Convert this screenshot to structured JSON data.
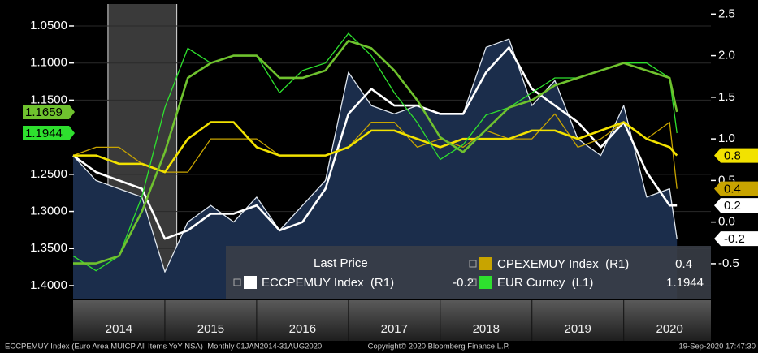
{
  "chart_data": {
    "type": "line",
    "x": [
      2014.0,
      2014.25,
      2014.5,
      2014.75,
      2015.0,
      2015.25,
      2015.5,
      2015.75,
      2016.0,
      2016.25,
      2016.5,
      2016.75,
      2017.0,
      2017.25,
      2017.5,
      2017.75,
      2018.0,
      2018.25,
      2018.5,
      2018.75,
      2019.0,
      2019.25,
      2019.5,
      2019.75,
      2020.0,
      2020.25,
      2020.5,
      2020.58
    ],
    "xlim": [
      2014,
      2020.95
    ],
    "xticks": [
      {
        "value": 2014.5,
        "label": "2014"
      },
      {
        "value": 2015.5,
        "label": "2015"
      },
      {
        "value": 2016.5,
        "label": "2016"
      },
      {
        "value": 2017.5,
        "label": "2017"
      },
      {
        "value": 2018.5,
        "label": "2018"
      },
      {
        "value": 2019.5,
        "label": "2019"
      },
      {
        "value": 2020.5,
        "label": "2020"
      }
    ],
    "ylim": [
      1.0205,
      1.4175
    ],
    "y_inverted": true,
    "yticks": [
      {
        "value": 1.05,
        "label": "1.0500"
      },
      {
        "value": 1.1,
        "label": "1.1000"
      },
      {
        "value": 1.15,
        "label": "1.1500"
      },
      {
        "value": 1.25,
        "label": "1.2500"
      },
      {
        "value": 1.3,
        "label": "1.3000"
      },
      {
        "value": 1.35,
        "label": "1.3500"
      },
      {
        "value": 1.4,
        "label": "1.4000"
      }
    ],
    "y2lim": [
      -0.92,
      2.62
    ],
    "y2ticks": [
      2.5,
      {
        "value": 2,
        "label": "2.0"
      },
      1.5,
      {
        "value": 1,
        "label": "1.0"
      },
      0.5,
      {
        "value": 0,
        "label": "0.0"
      },
      -0.5
    ],
    "grid": true,
    "highlight": [
      2014.38,
      2015.13
    ],
    "legend_title": "Last Price",
    "series": [
      {
        "name": "ECCPEMUY Index  (R1)",
        "axis": "y2",
        "color": "#dfe6ee",
        "width": 1.3,
        "area": "#1b2d4b",
        "values": [
          0.8,
          0.5,
          0.4,
          0.3,
          -0.6,
          0.0,
          0.2,
          0.0,
          0.3,
          -0.1,
          0.2,
          0.5,
          1.8,
          1.4,
          1.3,
          1.4,
          1.3,
          1.3,
          2.1,
          2.2,
          1.4,
          1.7,
          1.0,
          0.8,
          1.4,
          0.3,
          0.4,
          -0.2
        ]
      },
      {
        "axis": "y2",
        "color": "#ffffff",
        "width": 2.6,
        "values": [
          0.8,
          0.6,
          0.5,
          0.4,
          -0.2,
          -0.1,
          0.1,
          0.1,
          0.2,
          -0.1,
          0.0,
          0.4,
          1.3,
          1.6,
          1.4,
          1.4,
          1.3,
          1.3,
          1.8,
          2.1,
          1.6,
          1.4,
          1.2,
          0.9,
          1.2,
          0.6,
          0.2,
          0.2
        ]
      },
      {
        "name": "CPEXEMUY Index  (R1)",
        "axis": "y2",
        "color": "#c8a400",
        "width": 1.3,
        "values": [
          0.8,
          0.9,
          0.9,
          0.7,
          0.6,
          0.6,
          1.0,
          1.0,
          1.0,
          0.8,
          0.8,
          0.8,
          0.9,
          1.2,
          1.2,
          0.9,
          1.0,
          0.9,
          1.1,
          1.0,
          1.0,
          1.3,
          0.9,
          1.0,
          1.2,
          1.0,
          1.2,
          0.4
        ]
      },
      {
        "axis": "y2",
        "color": "#f2e200",
        "width": 2.6,
        "values": [
          0.8,
          0.8,
          0.7,
          0.7,
          0.6,
          1.0,
          1.2,
          1.2,
          0.9,
          0.8,
          0.8,
          0.8,
          0.9,
          1.1,
          1.1,
          1.0,
          0.9,
          1.0,
          1.0,
          1.0,
          1.1,
          1.1,
          1.0,
          1.1,
          1.2,
          1.0,
          0.9,
          0.8
        ]
      },
      {
        "name": "EUR Curncy  (L1)",
        "axis": "y",
        "color": "#2ee02e",
        "width": 1.3,
        "values": [
          1.36,
          1.38,
          1.36,
          1.28,
          1.16,
          1.08,
          1.1,
          1.09,
          1.09,
          1.14,
          1.11,
          1.1,
          1.06,
          1.09,
          1.14,
          1.18,
          1.23,
          1.21,
          1.17,
          1.16,
          1.14,
          1.12,
          1.12,
          1.11,
          1.1,
          1.1,
          1.12,
          1.1944
        ]
      },
      {
        "axis": "y",
        "color": "#6fc22e",
        "width": 2.6,
        "values": [
          1.37,
          1.37,
          1.36,
          1.3,
          1.22,
          1.12,
          1.1,
          1.09,
          1.09,
          1.12,
          1.12,
          1.11,
          1.07,
          1.08,
          1.11,
          1.15,
          1.2,
          1.22,
          1.19,
          1.16,
          1.15,
          1.13,
          1.12,
          1.11,
          1.1,
          1.11,
          1.12,
          1.1659
        ]
      }
    ],
    "footer": {
      "left": "ECCPEMUY Index (Euro Area MUICP All Items YoY NSA)  Monthly 01JAN2014-31AUG2020",
      "center": "Copyright© 2020 Bloomberg Finance L.P.",
      "right": "19-Sep-2020 17:47:30"
    }
  }
}
